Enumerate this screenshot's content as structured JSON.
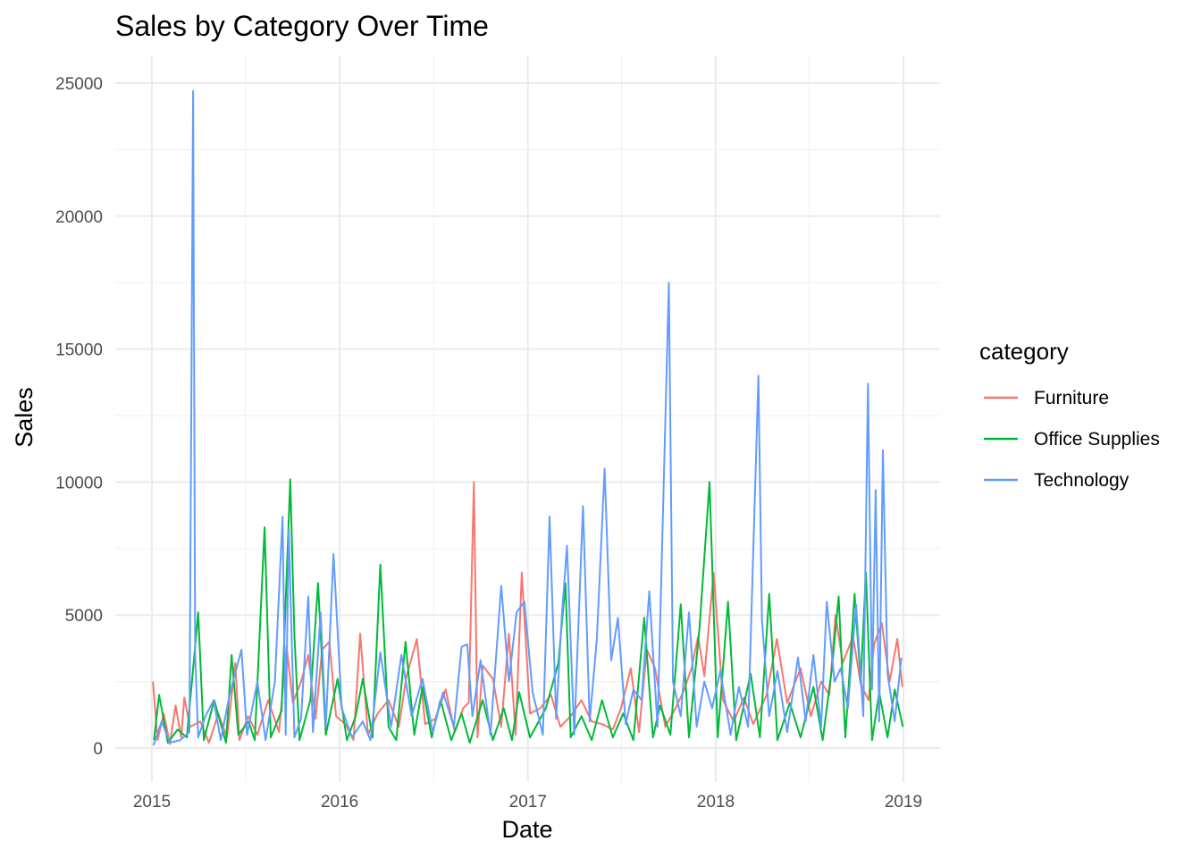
{
  "chart_data": {
    "type": "line",
    "title": "Sales by Category Over Time",
    "xlabel": "Date",
    "ylabel": "Sales",
    "xlim": [
      "2015-01-01",
      "2019-01-01"
    ],
    "ylim": [
      0,
      25000
    ],
    "x_ticks": [
      "2015",
      "2016",
      "2017",
      "2018",
      "2019"
    ],
    "y_ticks": [
      0,
      5000,
      10000,
      15000,
      20000,
      25000
    ],
    "grid": true,
    "legend": {
      "title": "category",
      "position": "right"
    },
    "series": [
      {
        "name": "Furniture",
        "color": "#F8766D",
        "points": [
          [
            "2015-01-03",
            2500
          ],
          [
            "2015-01-12",
            300
          ],
          [
            "2015-01-24",
            1300
          ],
          [
            "2015-02-05",
            150
          ],
          [
            "2015-02-16",
            1600
          ],
          [
            "2015-02-27",
            400
          ],
          [
            "2015-03-05",
            1900
          ],
          [
            "2015-03-16",
            800
          ],
          [
            "2015-04-05",
            1000
          ],
          [
            "2015-04-22",
            200
          ],
          [
            "2015-05-10",
            1300
          ],
          [
            "2015-05-27",
            400
          ],
          [
            "2015-06-12",
            3200
          ],
          [
            "2015-06-20",
            300
          ],
          [
            "2015-07-07",
            1200
          ],
          [
            "2015-07-25",
            500
          ],
          [
            "2015-08-15",
            1800
          ],
          [
            "2015-09-05",
            600
          ],
          [
            "2015-09-20",
            3800
          ],
          [
            "2015-10-02",
            1700
          ],
          [
            "2015-10-18",
            2500
          ],
          [
            "2015-11-01",
            3500
          ],
          [
            "2015-11-15",
            1100
          ],
          [
            "2015-11-28",
            3700
          ],
          [
            "2015-12-12",
            4000
          ],
          [
            "2015-12-25",
            1200
          ],
          [
            "2016-01-12",
            900
          ],
          [
            "2016-01-28",
            300
          ],
          [
            "2016-02-10",
            4300
          ],
          [
            "2016-02-25",
            500
          ],
          [
            "2016-03-15",
            1300
          ],
          [
            "2016-04-05",
            1800
          ],
          [
            "2016-04-25",
            800
          ],
          [
            "2016-05-10",
            2700
          ],
          [
            "2016-05-30",
            4100
          ],
          [
            "2016-06-15",
            900
          ],
          [
            "2016-07-05",
            1100
          ],
          [
            "2016-07-25",
            2200
          ],
          [
            "2016-08-12",
            600
          ],
          [
            "2016-08-28",
            1500
          ],
          [
            "2016-09-08",
            1700
          ],
          [
            "2016-09-18",
            10000
          ],
          [
            "2016-09-25",
            400
          ],
          [
            "2016-10-05",
            3100
          ],
          [
            "2016-10-25",
            2600
          ],
          [
            "2016-11-10",
            800
          ],
          [
            "2016-11-25",
            4300
          ],
          [
            "2016-12-08",
            500
          ],
          [
            "2016-12-20",
            6600
          ],
          [
            "2017-01-05",
            1300
          ],
          [
            "2017-01-25",
            1500
          ],
          [
            "2017-02-15",
            2000
          ],
          [
            "2017-03-05",
            800
          ],
          [
            "2017-03-25",
            1200
          ],
          [
            "2017-04-15",
            1800
          ],
          [
            "2017-05-05",
            1000
          ],
          [
            "2017-05-25",
            900
          ],
          [
            "2017-06-15",
            700
          ],
          [
            "2017-07-01",
            1500
          ],
          [
            "2017-07-20",
            3000
          ],
          [
            "2017-08-05",
            600
          ],
          [
            "2017-08-20",
            3700
          ],
          [
            "2017-09-05",
            3000
          ],
          [
            "2017-09-25",
            800
          ],
          [
            "2017-10-15",
            1500
          ],
          [
            "2017-11-01",
            2200
          ],
          [
            "2017-11-15",
            3000
          ],
          [
            "2017-11-28",
            4200
          ],
          [
            "2017-12-10",
            2700
          ],
          [
            "2017-12-28",
            6600
          ],
          [
            "2018-01-15",
            1800
          ],
          [
            "2018-02-05",
            1000
          ],
          [
            "2018-02-25",
            1900
          ],
          [
            "2018-03-15",
            900
          ],
          [
            "2018-04-10",
            2000
          ],
          [
            "2018-04-30",
            4100
          ],
          [
            "2018-05-20",
            1700
          ],
          [
            "2018-06-15",
            3000
          ],
          [
            "2018-07-05",
            1200
          ],
          [
            "2018-07-25",
            2500
          ],
          [
            "2018-08-10",
            2000
          ],
          [
            "2018-08-22",
            5000
          ],
          [
            "2018-09-05",
            3200
          ],
          [
            "2018-09-25",
            4200
          ],
          [
            "2018-10-10",
            2400
          ],
          [
            "2018-10-25",
            1800
          ],
          [
            "2018-11-05",
            3900
          ],
          [
            "2018-11-20",
            4700
          ],
          [
            "2018-12-05",
            2500
          ],
          [
            "2018-12-20",
            4100
          ],
          [
            "2018-12-30",
            2300
          ]
        ]
      },
      {
        "name": "Office Supplies",
        "color": "#00BA38",
        "points": [
          [
            "2015-01-05",
            300
          ],
          [
            "2015-01-15",
            2000
          ],
          [
            "2015-02-01",
            200
          ],
          [
            "2015-02-20",
            700
          ],
          [
            "2015-03-10",
            400
          ],
          [
            "2015-04-01",
            5100
          ],
          [
            "2015-04-12",
            300
          ],
          [
            "2015-05-02",
            1800
          ],
          [
            "2015-05-25",
            200
          ],
          [
            "2015-06-05",
            3500
          ],
          [
            "2015-06-18",
            500
          ],
          [
            "2015-07-08",
            1000
          ],
          [
            "2015-07-20",
            300
          ],
          [
            "2015-08-08",
            8300
          ],
          [
            "2015-08-20",
            400
          ],
          [
            "2015-09-10",
            1400
          ],
          [
            "2015-09-27",
            10100
          ],
          [
            "2015-10-05",
            4200
          ],
          [
            "2015-10-15",
            300
          ],
          [
            "2015-11-05",
            1800
          ],
          [
            "2015-11-20",
            6200
          ],
          [
            "2015-12-05",
            500
          ],
          [
            "2015-12-28",
            2600
          ],
          [
            "2016-01-15",
            300
          ],
          [
            "2016-02-01",
            1200
          ],
          [
            "2016-02-15",
            2600
          ],
          [
            "2016-03-05",
            400
          ],
          [
            "2016-03-20",
            6900
          ],
          [
            "2016-04-05",
            800
          ],
          [
            "2016-04-20",
            300
          ],
          [
            "2016-05-08",
            4000
          ],
          [
            "2016-05-25",
            500
          ],
          [
            "2016-06-10",
            2300
          ],
          [
            "2016-06-28",
            400
          ],
          [
            "2016-07-15",
            1800
          ],
          [
            "2016-08-05",
            300
          ],
          [
            "2016-08-25",
            1300
          ],
          [
            "2016-09-10",
            200
          ],
          [
            "2016-10-05",
            1800
          ],
          [
            "2016-10-25",
            300
          ],
          [
            "2016-11-15",
            1500
          ],
          [
            "2016-12-01",
            300
          ],
          [
            "2016-12-15",
            2100
          ],
          [
            "2017-01-05",
            400
          ],
          [
            "2017-02-05",
            1500
          ],
          [
            "2017-03-01",
            3200
          ],
          [
            "2017-03-15",
            6200
          ],
          [
            "2017-03-25",
            400
          ],
          [
            "2017-04-15",
            1200
          ],
          [
            "2017-05-05",
            300
          ],
          [
            "2017-05-25",
            1800
          ],
          [
            "2017-06-15",
            400
          ],
          [
            "2017-07-05",
            1300
          ],
          [
            "2017-07-25",
            300
          ],
          [
            "2017-08-15",
            4900
          ],
          [
            "2017-09-01",
            400
          ],
          [
            "2017-09-15",
            1600
          ],
          [
            "2017-10-05",
            500
          ],
          [
            "2017-10-25",
            5400
          ],
          [
            "2017-11-10",
            400
          ],
          [
            "2017-12-01",
            4600
          ],
          [
            "2017-12-20",
            10000
          ],
          [
            "2018-01-05",
            400
          ],
          [
            "2018-01-25",
            5500
          ],
          [
            "2018-02-10",
            300
          ],
          [
            "2018-03-10",
            2800
          ],
          [
            "2018-03-28",
            400
          ],
          [
            "2018-04-15",
            5800
          ],
          [
            "2018-05-01",
            300
          ],
          [
            "2018-05-25",
            1700
          ],
          [
            "2018-06-15",
            400
          ],
          [
            "2018-07-10",
            2300
          ],
          [
            "2018-07-28",
            300
          ],
          [
            "2018-08-15",
            3000
          ],
          [
            "2018-08-28",
            5700
          ],
          [
            "2018-09-10",
            400
          ],
          [
            "2018-09-28",
            5800
          ],
          [
            "2018-10-10",
            2500
          ],
          [
            "2018-10-20",
            6600
          ],
          [
            "2018-11-01",
            300
          ],
          [
            "2018-11-15",
            2100
          ],
          [
            "2018-12-01",
            400
          ],
          [
            "2018-12-15",
            2200
          ],
          [
            "2018-12-31",
            800
          ]
        ]
      },
      {
        "name": "Technology",
        "color": "#619CFF",
        "points": [
          [
            "2015-01-04",
            100
          ],
          [
            "2015-01-20",
            1000
          ],
          [
            "2015-02-05",
            200
          ],
          [
            "2015-02-25",
            300
          ],
          [
            "2015-03-15",
            600
          ],
          [
            "2015-03-22",
            24700
          ],
          [
            "2015-03-26",
            3500
          ],
          [
            "2015-04-01",
            400
          ],
          [
            "2015-04-15",
            1200
          ],
          [
            "2015-05-01",
            1800
          ],
          [
            "2015-05-15",
            300
          ],
          [
            "2015-06-01",
            2000
          ],
          [
            "2015-06-24",
            3700
          ],
          [
            "2015-07-05",
            500
          ],
          [
            "2015-07-25",
            2500
          ],
          [
            "2015-08-10",
            300
          ],
          [
            "2015-08-28",
            2500
          ],
          [
            "2015-09-12",
            8700
          ],
          [
            "2015-09-18",
            500
          ],
          [
            "2015-09-24",
            8200
          ],
          [
            "2015-10-05",
            400
          ],
          [
            "2015-10-18",
            1100
          ],
          [
            "2015-11-01",
            5700
          ],
          [
            "2015-11-10",
            600
          ],
          [
            "2015-11-25",
            5100
          ],
          [
            "2015-12-05",
            800
          ],
          [
            "2015-12-20",
            7300
          ],
          [
            "2016-01-05",
            1500
          ],
          [
            "2016-01-25",
            400
          ],
          [
            "2016-02-15",
            1000
          ],
          [
            "2016-03-01",
            300
          ],
          [
            "2016-03-20",
            3600
          ],
          [
            "2016-04-10",
            800
          ],
          [
            "2016-04-30",
            3500
          ],
          [
            "2016-05-20",
            1200
          ],
          [
            "2016-06-10",
            2600
          ],
          [
            "2016-06-30",
            600
          ],
          [
            "2016-07-20",
            2100
          ],
          [
            "2016-08-10",
            800
          ],
          [
            "2016-08-25",
            3800
          ],
          [
            "2016-09-05",
            3900
          ],
          [
            "2016-09-15",
            1200
          ],
          [
            "2016-10-01",
            3300
          ],
          [
            "2016-10-20",
            500
          ],
          [
            "2016-11-10",
            6100
          ],
          [
            "2016-11-25",
            2500
          ],
          [
            "2016-12-10",
            5100
          ],
          [
            "2016-12-25",
            5500
          ],
          [
            "2017-01-10",
            2100
          ],
          [
            "2017-01-30",
            500
          ],
          [
            "2017-02-12",
            8700
          ],
          [
            "2017-02-25",
            1100
          ],
          [
            "2017-03-08",
            5000
          ],
          [
            "2017-03-18",
            7600
          ],
          [
            "2017-04-01",
            500
          ],
          [
            "2017-04-18",
            9100
          ],
          [
            "2017-05-01",
            1000
          ],
          [
            "2017-05-15",
            4100
          ],
          [
            "2017-05-30",
            10500
          ],
          [
            "2017-06-12",
            3300
          ],
          [
            "2017-06-25",
            4900
          ],
          [
            "2017-07-10",
            900
          ],
          [
            "2017-07-25",
            2200
          ],
          [
            "2017-08-10",
            1800
          ],
          [
            "2017-08-25",
            5900
          ],
          [
            "2017-09-10",
            800
          ],
          [
            "2017-10-02",
            17500
          ],
          [
            "2017-10-10",
            2500
          ],
          [
            "2017-10-25",
            1200
          ],
          [
            "2017-11-10",
            5100
          ],
          [
            "2017-11-25",
            800
          ],
          [
            "2017-12-10",
            2500
          ],
          [
            "2017-12-25",
            1500
          ],
          [
            "2018-01-10",
            2900
          ],
          [
            "2018-01-30",
            500
          ],
          [
            "2018-02-15",
            2300
          ],
          [
            "2018-03-05",
            800
          ],
          [
            "2018-03-25",
            14000
          ],
          [
            "2018-04-01",
            4800
          ],
          [
            "2018-04-15",
            1200
          ],
          [
            "2018-05-01",
            2900
          ],
          [
            "2018-05-20",
            600
          ],
          [
            "2018-06-10",
            3400
          ],
          [
            "2018-06-25",
            1000
          ],
          [
            "2018-07-10",
            3500
          ],
          [
            "2018-07-25",
            800
          ],
          [
            "2018-08-05",
            5500
          ],
          [
            "2018-08-20",
            2500
          ],
          [
            "2018-09-01",
            3000
          ],
          [
            "2018-09-15",
            1500
          ],
          [
            "2018-10-01",
            5400
          ],
          [
            "2018-10-15",
            1200
          ],
          [
            "2018-10-24",
            13700
          ],
          [
            "2018-11-01",
            2200
          ],
          [
            "2018-11-08",
            9700
          ],
          [
            "2018-11-15",
            1000
          ],
          [
            "2018-11-22",
            11200
          ],
          [
            "2018-12-01",
            2800
          ],
          [
            "2018-12-15",
            1000
          ],
          [
            "2018-12-28",
            3400
          ]
        ]
      }
    ]
  }
}
